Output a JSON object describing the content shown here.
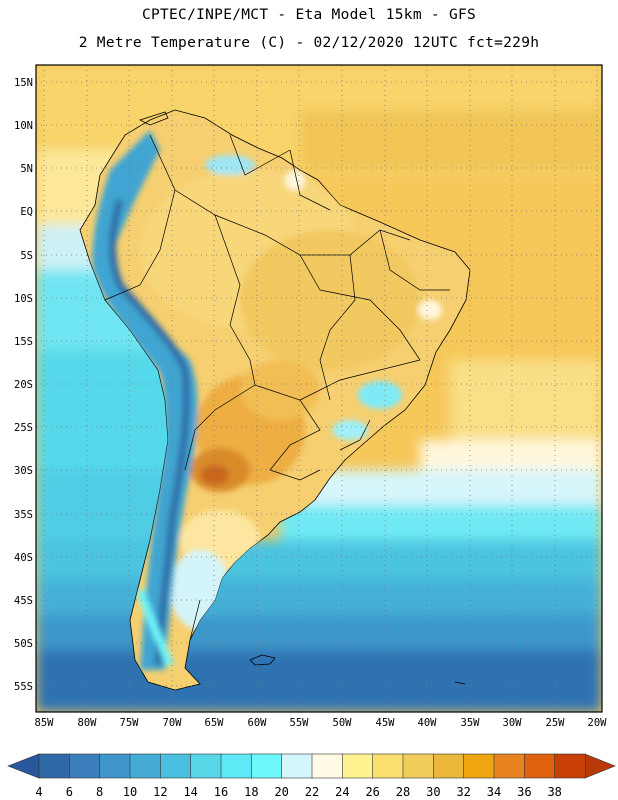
{
  "header": {
    "line1": "CPTEC/INPE/MCT -  Eta Model 15km - GFS",
    "line2": "2 Metre Temperature (C) - 02/12/2020 12UTC fct=229h"
  },
  "map": {
    "lat_labels": [
      "15N",
      "10N",
      "5N",
      "EQ",
      "5S",
      "10S",
      "15S",
      "20S",
      "25S",
      "30S",
      "35S",
      "40S",
      "45S",
      "50S",
      "55S"
    ],
    "lon_labels": [
      "85W",
      "80W",
      "75W",
      "70W",
      "65W",
      "60W",
      "55W",
      "50W",
      "45W",
      "40W",
      "35W",
      "30W",
      "25W",
      "20W"
    ]
  },
  "colorbar": {
    "ticks": [
      "4",
      "6",
      "8",
      "10",
      "12",
      "14",
      "16",
      "18",
      "20",
      "22",
      "24",
      "26",
      "28",
      "30",
      "32",
      "34",
      "36",
      "38"
    ],
    "colors": [
      "#2f6aa6",
      "#3a7fbc",
      "#3f97c9",
      "#45acd6",
      "#49c0e0",
      "#57d6e8",
      "#5de9f5",
      "#6df9fc",
      "#d3f7fc",
      "#fffbe6",
      "#fff391",
      "#fbe070",
      "#f2cd5c",
      "#ebb83c",
      "#efa510",
      "#e88420",
      "#e0620e",
      "#c84008"
    ],
    "left_arrow_color": "#2857a0",
    "right_arrow_color": "#b83a08"
  }
}
